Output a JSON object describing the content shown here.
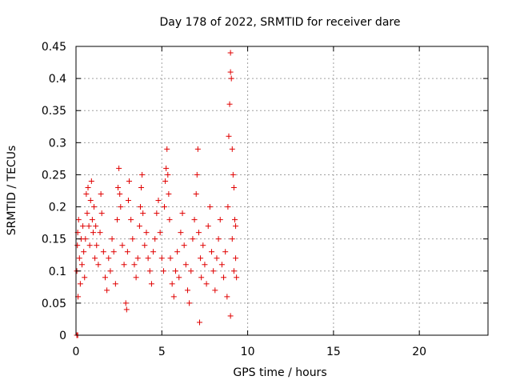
{
  "chart_data": {
    "type": "scatter",
    "title": "Day 178 of 2022, SRMTID for receiver dare",
    "xlabel": "GPS time / hours",
    "ylabel": "SRMTID / TECUs",
    "xlim": [
      0,
      24
    ],
    "ylim": [
      0,
      0.45
    ],
    "x_ticks": [
      "0",
      "5",
      "10",
      "15",
      "20"
    ],
    "y_ticks": [
      "0",
      "0.05",
      "0.1",
      "0.15",
      "0.2",
      "0.25",
      "0.3",
      "0.35",
      "0.4",
      "0.45"
    ],
    "grid": true,
    "marker": "+",
    "colors": {
      "points": "#e00000"
    },
    "series": [
      {
        "points": [
          [
            0.05,
            0.0
          ],
          [
            0.1,
            0.0
          ],
          [
            0.05,
            0.1
          ],
          [
            0.08,
            0.14
          ],
          [
            0.1,
            0.16
          ],
          [
            0.12,
            0.06
          ],
          [
            0.15,
            0.18
          ],
          [
            0.2,
            0.12
          ],
          [
            0.25,
            0.08
          ],
          [
            0.3,
            0.15
          ],
          [
            0.35,
            0.11
          ],
          [
            0.4,
            0.17
          ],
          [
            0.45,
            0.13
          ],
          [
            0.5,
            0.09
          ],
          [
            0.55,
            0.15
          ],
          [
            0.6,
            0.22
          ],
          [
            0.65,
            0.19
          ],
          [
            0.7,
            0.23
          ],
          [
            0.75,
            0.17
          ],
          [
            0.8,
            0.14
          ],
          [
            0.85,
            0.21
          ],
          [
            0.9,
            0.24
          ],
          [
            0.95,
            0.18
          ],
          [
            1.0,
            0.16
          ],
          [
            1.05,
            0.2
          ],
          [
            1.1,
            0.12
          ],
          [
            1.15,
            0.17
          ],
          [
            1.2,
            0.14
          ],
          [
            1.3,
            0.11
          ],
          [
            1.4,
            0.16
          ],
          [
            1.45,
            0.22
          ],
          [
            1.5,
            0.19
          ],
          [
            1.6,
            0.13
          ],
          [
            1.7,
            0.09
          ],
          [
            1.8,
            0.07
          ],
          [
            1.9,
            0.12
          ],
          [
            2.0,
            0.1
          ],
          [
            2.1,
            0.15
          ],
          [
            2.2,
            0.13
          ],
          [
            2.3,
            0.08
          ],
          [
            2.4,
            0.18
          ],
          [
            2.45,
            0.23
          ],
          [
            2.5,
            0.26
          ],
          [
            2.55,
            0.22
          ],
          [
            2.6,
            0.2
          ],
          [
            2.7,
            0.14
          ],
          [
            2.8,
            0.11
          ],
          [
            2.9,
            0.05
          ],
          [
            2.95,
            0.04
          ],
          [
            3.0,
            0.13
          ],
          [
            3.05,
            0.21
          ],
          [
            3.1,
            0.24
          ],
          [
            3.2,
            0.18
          ],
          [
            3.3,
            0.15
          ],
          [
            3.4,
            0.11
          ],
          [
            3.5,
            0.09
          ],
          [
            3.6,
            0.12
          ],
          [
            3.7,
            0.17
          ],
          [
            3.75,
            0.2
          ],
          [
            3.8,
            0.23
          ],
          [
            3.85,
            0.25
          ],
          [
            3.9,
            0.19
          ],
          [
            4.0,
            0.14
          ],
          [
            4.1,
            0.16
          ],
          [
            4.2,
            0.12
          ],
          [
            4.3,
            0.1
          ],
          [
            4.4,
            0.08
          ],
          [
            4.5,
            0.13
          ],
          [
            4.6,
            0.15
          ],
          [
            4.7,
            0.19
          ],
          [
            4.8,
            0.21
          ],
          [
            4.9,
            0.16
          ],
          [
            5.0,
            0.12
          ],
          [
            5.1,
            0.1
          ],
          [
            5.15,
            0.2
          ],
          [
            5.2,
            0.24
          ],
          [
            5.25,
            0.26
          ],
          [
            5.3,
            0.29
          ],
          [
            5.35,
            0.25
          ],
          [
            5.4,
            0.22
          ],
          [
            5.45,
            0.18
          ],
          [
            5.5,
            0.12
          ],
          [
            5.6,
            0.08
          ],
          [
            5.7,
            0.06
          ],
          [
            5.8,
            0.1
          ],
          [
            5.9,
            0.13
          ],
          [
            6.0,
            0.09
          ],
          [
            6.1,
            0.16
          ],
          [
            6.2,
            0.19
          ],
          [
            6.3,
            0.14
          ],
          [
            6.4,
            0.11
          ],
          [
            6.5,
            0.07
          ],
          [
            6.6,
            0.05
          ],
          [
            6.7,
            0.1
          ],
          [
            6.8,
            0.15
          ],
          [
            6.9,
            0.18
          ],
          [
            7.0,
            0.22
          ],
          [
            7.05,
            0.25
          ],
          [
            7.1,
            0.29
          ],
          [
            7.15,
            0.16
          ],
          [
            7.2,
            0.02
          ],
          [
            7.25,
            0.12
          ],
          [
            7.3,
            0.09
          ],
          [
            7.4,
            0.14
          ],
          [
            7.5,
            0.11
          ],
          [
            7.6,
            0.08
          ],
          [
            7.7,
            0.17
          ],
          [
            7.8,
            0.2
          ],
          [
            7.9,
            0.13
          ],
          [
            8.0,
            0.1
          ],
          [
            8.1,
            0.07
          ],
          [
            8.2,
            0.12
          ],
          [
            8.3,
            0.15
          ],
          [
            8.4,
            0.18
          ],
          [
            8.5,
            0.11
          ],
          [
            8.6,
            0.09
          ],
          [
            8.7,
            0.13
          ],
          [
            8.8,
            0.06
          ],
          [
            8.85,
            0.2
          ],
          [
            8.9,
            0.31
          ],
          [
            8.95,
            0.36
          ],
          [
            9.0,
            0.41
          ],
          [
            9.0,
            0.44
          ],
          [
            9.05,
            0.4
          ],
          [
            9.1,
            0.29
          ],
          [
            9.15,
            0.25
          ],
          [
            9.2,
            0.23
          ],
          [
            9.25,
            0.18
          ],
          [
            9.3,
            0.12
          ],
          [
            9.35,
            0.09
          ],
          [
            9.0,
            0.03
          ],
          [
            9.1,
            0.15
          ],
          [
            9.2,
            0.1
          ],
          [
            9.3,
            0.17
          ]
        ]
      }
    ]
  }
}
